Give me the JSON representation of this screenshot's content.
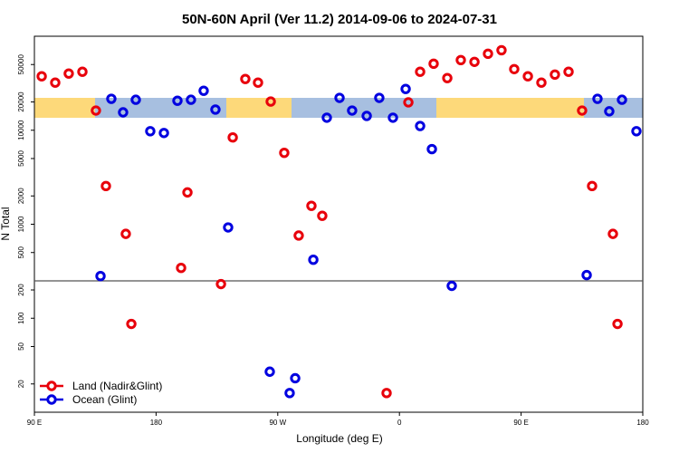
{
  "chart_data": {
    "type": "scatter",
    "title": "50N-60N April (Ver 11.2)   2014-09-06 to 2024-07-31",
    "xlabel": "Longitude (deg E)",
    "ylabel": "N Total",
    "log_y": true,
    "xlim": [
      90,
      540
    ],
    "ylim": [
      10,
      100000
    ],
    "xticks": [
      {
        "value": 90,
        "label": "90 E"
      },
      {
        "value": 180,
        "label": "180"
      },
      {
        "value": 270,
        "label": "90 W"
      },
      {
        "value": 360,
        "label": "0"
      },
      {
        "value": 450,
        "label": "90 E"
      },
      {
        "value": 540,
        "label": "180"
      }
    ],
    "yticks": [
      20,
      50,
      100,
      200,
      500,
      1000,
      2000,
      5000,
      10000,
      20000,
      50000
    ],
    "hline": 250,
    "legend": "bottom-left",
    "series": [
      {
        "name": "Land (Nadir&Glint)",
        "color": "#e8000b",
        "x": [
          95.4,
          105.4,
          115.4,
          125.5,
          135.5,
          142.9,
          157.6,
          161.7,
          198.5,
          203.2,
          228,
          236.7,
          246,
          255.4,
          264.8,
          274.8,
          285.5,
          294.9,
          302.9,
          350.5,
          366.6,
          375.3,
          385.3,
          395.4,
          405.4,
          415.5,
          425.5,
          435.5,
          444.9,
          455,
          465,
          475,
          485.1,
          495.1,
          502.5,
          517.9,
          521.3
        ],
        "values": [
          37500,
          32100,
          40100,
          41900,
          16200,
          2550,
          790,
          87,
          343,
          2180,
          231,
          8380,
          35100,
          32100,
          20200,
          5750,
          758,
          1570,
          1230,
          16,
          19800,
          41900,
          51000,
          35900,
          55800,
          53400,
          65100,
          71000,
          44700,
          37500,
          32100,
          39100,
          41900,
          16200,
          2550,
          790,
          87
        ]
      },
      {
        "name": "Ocean (Glint)",
        "color": "#0000e0",
        "x": [
          138.9,
          146.9,
          155.6,
          165,
          175.7,
          185.8,
          195.8,
          205.8,
          215.2,
          223.9,
          233.3,
          264.1,
          278.8,
          282.9,
          296.3,
          306.3,
          315.7,
          325,
          335.8,
          345.1,
          355.2,
          364.6,
          375.3,
          384,
          398.7,
          498.5,
          506.5,
          515.2,
          524.6,
          535.3
        ],
        "values": [
          281,
          21600,
          15500,
          21100,
          9770,
          9350,
          20600,
          21100,
          26300,
          16600,
          925,
          27,
          16,
          23,
          419,
          13600,
          22100,
          16200,
          14200,
          22100,
          13600,
          27500,
          11100,
          6300,
          221,
          288,
          21600,
          15900,
          21100,
          9770
        ]
      }
    ]
  }
}
